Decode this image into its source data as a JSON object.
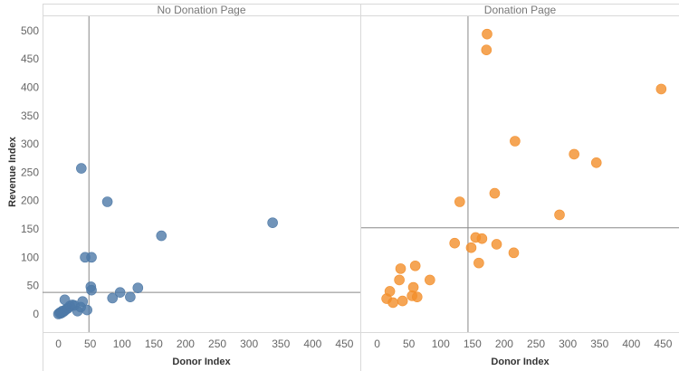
{
  "chart_data": {
    "type": "scatter",
    "x_label": "Donor Index",
    "y_label": "Revenue Index",
    "x_ticks": [
      0,
      50,
      100,
      150,
      200,
      250,
      300,
      350,
      400,
      450
    ],
    "y_ticks": [
      0,
      50,
      100,
      150,
      200,
      250,
      300,
      350,
      400,
      450,
      500
    ],
    "xlim": [
      -25,
      475
    ],
    "ylim": [
      -32,
      527
    ],
    "grid": false,
    "panels": [
      {
        "title": "No Donation Page",
        "color": "#4e79a7",
        "ref_x": 48,
        "ref_y": 38,
        "points": [
          {
            "x": 0,
            "y": 0
          },
          {
            "x": 2,
            "y": 2
          },
          {
            "x": 3,
            "y": 1
          },
          {
            "x": 4,
            "y": 3
          },
          {
            "x": 5,
            "y": 2
          },
          {
            "x": 6,
            "y": 5
          },
          {
            "x": 8,
            "y": 4
          },
          {
            "x": 10,
            "y": 6
          },
          {
            "x": 12,
            "y": 8
          },
          {
            "x": 15,
            "y": 10
          },
          {
            "x": 18,
            "y": 14
          },
          {
            "x": 22,
            "y": 16
          },
          {
            "x": 25,
            "y": 15
          },
          {
            "x": 30,
            "y": 5
          },
          {
            "x": 35,
            "y": 12
          },
          {
            "x": 38,
            "y": 22
          },
          {
            "x": 45,
            "y": 7
          },
          {
            "x": 10,
            "y": 25
          },
          {
            "x": 36,
            "y": 257
          },
          {
            "x": 42,
            "y": 100
          },
          {
            "x": 52,
            "y": 100
          },
          {
            "x": 51,
            "y": 48
          },
          {
            "x": 52,
            "y": 42
          },
          {
            "x": 77,
            "y": 198
          },
          {
            "x": 85,
            "y": 28
          },
          {
            "x": 97,
            "y": 38
          },
          {
            "x": 113,
            "y": 30
          },
          {
            "x": 125,
            "y": 46
          },
          {
            "x": 162,
            "y": 138
          },
          {
            "x": 337,
            "y": 161
          }
        ]
      },
      {
        "title": "Donation Page",
        "color": "#f28e2b",
        "ref_x": 143,
        "ref_y": 152,
        "points": [
          {
            "x": 15,
            "y": 27
          },
          {
            "x": 20,
            "y": 40
          },
          {
            "x": 25,
            "y": 20
          },
          {
            "x": 35,
            "y": 60
          },
          {
            "x": 37,
            "y": 80
          },
          {
            "x": 40,
            "y": 23
          },
          {
            "x": 55,
            "y": 32
          },
          {
            "x": 57,
            "y": 47
          },
          {
            "x": 60,
            "y": 85
          },
          {
            "x": 63,
            "y": 30
          },
          {
            "x": 83,
            "y": 60
          },
          {
            "x": 122,
            "y": 125
          },
          {
            "x": 130,
            "y": 198
          },
          {
            "x": 148,
            "y": 117
          },
          {
            "x": 155,
            "y": 135
          },
          {
            "x": 160,
            "y": 90
          },
          {
            "x": 165,
            "y": 133
          },
          {
            "x": 172,
            "y": 466
          },
          {
            "x": 173,
            "y": 494
          },
          {
            "x": 185,
            "y": 213
          },
          {
            "x": 188,
            "y": 123
          },
          {
            "x": 215,
            "y": 108
          },
          {
            "x": 217,
            "y": 305
          },
          {
            "x": 287,
            "y": 175
          },
          {
            "x": 310,
            "y": 282
          },
          {
            "x": 345,
            "y": 267
          },
          {
            "x": 447,
            "y": 397
          }
        ]
      }
    ]
  }
}
